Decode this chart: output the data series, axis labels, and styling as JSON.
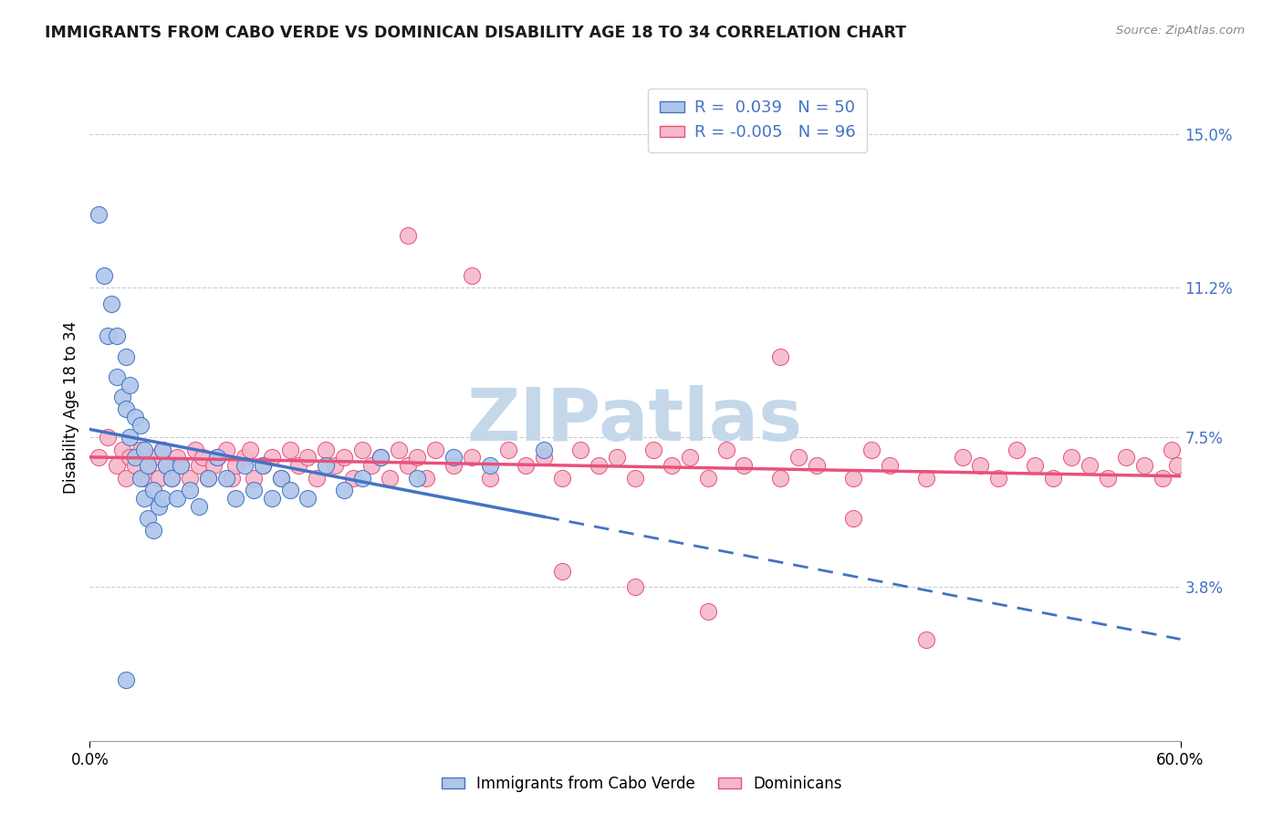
{
  "title": "IMMIGRANTS FROM CABO VERDE VS DOMINICAN DISABILITY AGE 18 TO 34 CORRELATION CHART",
  "source": "Source: ZipAtlas.com",
  "ylabel": "Disability Age 18 to 34",
  "xlim": [
    0.0,
    0.6
  ],
  "ylim": [
    0.0,
    0.165
  ],
  "x_tick_labels": [
    "0.0%",
    "60.0%"
  ],
  "x_tick_values": [
    0.0,
    0.6
  ],
  "y_tick_labels_right": [
    "3.8%",
    "7.5%",
    "11.2%",
    "15.0%"
  ],
  "y_tick_values_right": [
    0.038,
    0.075,
    0.112,
    0.15
  ],
  "legend_labels": [
    "Immigrants from Cabo Verde",
    "Dominicans"
  ],
  "cabo_verde_R": "0.039",
  "cabo_verde_N": "50",
  "dominican_R": "-0.005",
  "dominican_N": "96",
  "cabo_verde_color": "#aec6ea",
  "dominican_color": "#f5b8cb",
  "cabo_verde_line_color": "#4472c4",
  "dominican_line_color": "#e8517a",
  "background_color": "#ffffff",
  "watermark": "ZIPatlas",
  "watermark_color": "#c5d8ea",
  "cabo_verde_scatter_x": [
    0.005,
    0.008,
    0.01,
    0.012,
    0.015,
    0.015,
    0.018,
    0.02,
    0.02,
    0.022,
    0.022,
    0.025,
    0.025,
    0.028,
    0.028,
    0.03,
    0.03,
    0.032,
    0.032,
    0.035,
    0.035,
    0.038,
    0.04,
    0.04,
    0.042,
    0.045,
    0.048,
    0.05,
    0.055,
    0.06,
    0.065,
    0.07,
    0.075,
    0.08,
    0.085,
    0.09,
    0.095,
    0.1,
    0.105,
    0.11,
    0.12,
    0.13,
    0.14,
    0.15,
    0.16,
    0.18,
    0.2,
    0.22,
    0.25,
    0.02
  ],
  "cabo_verde_scatter_y": [
    0.13,
    0.115,
    0.1,
    0.108,
    0.09,
    0.1,
    0.085,
    0.095,
    0.082,
    0.088,
    0.075,
    0.08,
    0.07,
    0.078,
    0.065,
    0.072,
    0.06,
    0.068,
    0.055,
    0.062,
    0.052,
    0.058,
    0.072,
    0.06,
    0.068,
    0.065,
    0.06,
    0.068,
    0.062,
    0.058,
    0.065,
    0.07,
    0.065,
    0.06,
    0.068,
    0.062,
    0.068,
    0.06,
    0.065,
    0.062,
    0.06,
    0.068,
    0.062,
    0.065,
    0.07,
    0.065,
    0.07,
    0.068,
    0.072,
    0.015
  ],
  "dominican_scatter_x": [
    0.005,
    0.01,
    0.015,
    0.018,
    0.02,
    0.022,
    0.025,
    0.028,
    0.03,
    0.032,
    0.035,
    0.038,
    0.04,
    0.042,
    0.045,
    0.048,
    0.05,
    0.055,
    0.058,
    0.06,
    0.062,
    0.065,
    0.068,
    0.07,
    0.075,
    0.078,
    0.08,
    0.085,
    0.088,
    0.09,
    0.095,
    0.1,
    0.105,
    0.11,
    0.115,
    0.12,
    0.125,
    0.13,
    0.135,
    0.14,
    0.145,
    0.15,
    0.155,
    0.16,
    0.165,
    0.17,
    0.175,
    0.18,
    0.185,
    0.19,
    0.2,
    0.21,
    0.22,
    0.23,
    0.24,
    0.25,
    0.26,
    0.27,
    0.28,
    0.29,
    0.3,
    0.31,
    0.32,
    0.33,
    0.34,
    0.35,
    0.36,
    0.38,
    0.39,
    0.4,
    0.42,
    0.43,
    0.44,
    0.46,
    0.48,
    0.49,
    0.5,
    0.51,
    0.52,
    0.53,
    0.54,
    0.55,
    0.56,
    0.57,
    0.58,
    0.59,
    0.595,
    0.598,
    0.175,
    0.21,
    0.38,
    0.42,
    0.26,
    0.3,
    0.34,
    0.46
  ],
  "dominican_scatter_y": [
    0.07,
    0.075,
    0.068,
    0.072,
    0.065,
    0.07,
    0.068,
    0.072,
    0.065,
    0.068,
    0.07,
    0.065,
    0.072,
    0.068,
    0.065,
    0.07,
    0.068,
    0.065,
    0.072,
    0.068,
    0.07,
    0.065,
    0.068,
    0.07,
    0.072,
    0.065,
    0.068,
    0.07,
    0.072,
    0.065,
    0.068,
    0.07,
    0.065,
    0.072,
    0.068,
    0.07,
    0.065,
    0.072,
    0.068,
    0.07,
    0.065,
    0.072,
    0.068,
    0.07,
    0.065,
    0.072,
    0.068,
    0.07,
    0.065,
    0.072,
    0.068,
    0.07,
    0.065,
    0.072,
    0.068,
    0.07,
    0.065,
    0.072,
    0.068,
    0.07,
    0.065,
    0.072,
    0.068,
    0.07,
    0.065,
    0.072,
    0.068,
    0.065,
    0.07,
    0.068,
    0.065,
    0.072,
    0.068,
    0.065,
    0.07,
    0.068,
    0.065,
    0.072,
    0.068,
    0.065,
    0.07,
    0.068,
    0.065,
    0.07,
    0.068,
    0.065,
    0.072,
    0.068,
    0.125,
    0.115,
    0.095,
    0.055,
    0.042,
    0.038,
    0.032,
    0.025
  ]
}
